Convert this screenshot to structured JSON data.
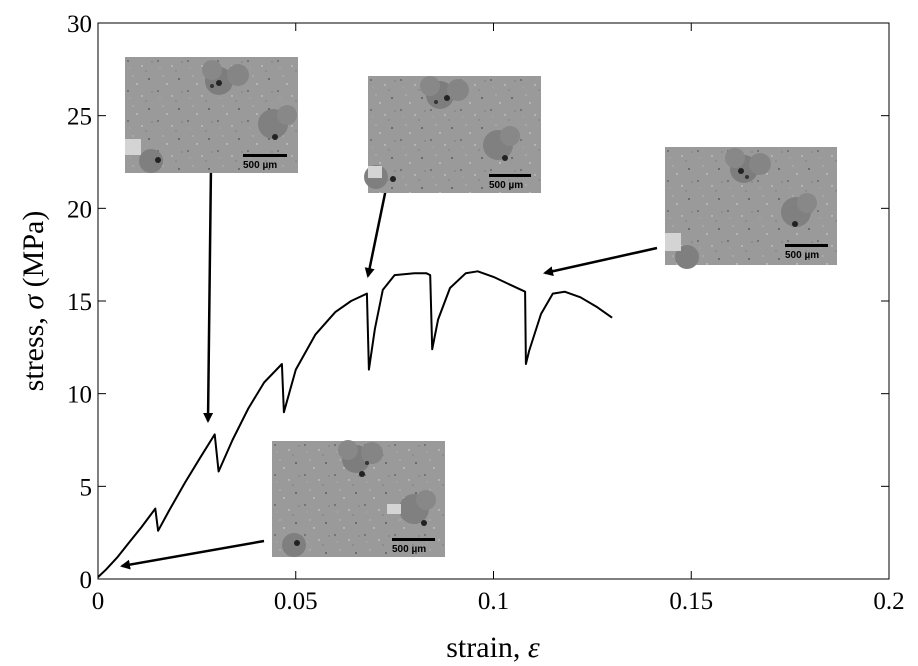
{
  "chart_data": {
    "type": "line",
    "xlabel": "strain, ",
    "xlabel_symbol": "ε",
    "ylabel": "stress, ",
    "ylabel_symbol": "σ",
    "ylabel_unit": " (MPa)",
    "xlim": [
      0,
      0.2
    ],
    "ylim": [
      0,
      30
    ],
    "x_ticks": [
      0,
      0.05,
      0.1,
      0.15,
      0.2
    ],
    "x_tick_labels": [
      "0",
      "0.05",
      "0.1",
      "0.15",
      "0.2"
    ],
    "y_ticks": [
      0,
      5,
      10,
      15,
      20,
      25,
      30
    ],
    "y_tick_labels": [
      "0",
      "5",
      "10",
      "15",
      "20",
      "25",
      "30"
    ],
    "grid": false,
    "line_color": "#000000",
    "series": [
      {
        "x": [
          0,
          0.002,
          0.005,
          0.008,
          0.011,
          0.0145,
          0.0152,
          0.018,
          0.022,
          0.026,
          0.0295,
          0.0305,
          0.034,
          0.038,
          0.042,
          0.0465,
          0.047,
          0.05,
          0.055,
          0.06,
          0.064,
          0.068,
          0.0685,
          0.07,
          0.072,
          0.075,
          0.08,
          0.083,
          0.084,
          0.0845,
          0.086,
          0.089,
          0.093,
          0.096,
          0.1,
          0.105,
          0.108,
          0.1082,
          0.109,
          0.112,
          0.115,
          0.118,
          0.122,
          0.126,
          0.13
        ],
        "y": [
          0.1,
          0.5,
          1.2,
          2.0,
          2.8,
          3.8,
          2.6,
          3.7,
          5.2,
          6.6,
          7.8,
          5.8,
          7.5,
          9.2,
          10.6,
          11.6,
          9.0,
          11.3,
          13.2,
          14.4,
          15.0,
          15.4,
          11.3,
          13.5,
          15.6,
          16.4,
          16.5,
          16.5,
          16.4,
          12.4,
          14.0,
          15.7,
          16.5,
          16.6,
          16.3,
          15.8,
          15.5,
          11.6,
          12.3,
          14.3,
          15.4,
          15.5,
          15.2,
          14.7,
          14.1
        ]
      }
    ],
    "annotations": [
      {
        "target": [
          0.005,
          0.7
        ],
        "inset_scale_label": "500 µm"
      },
      {
        "target": [
          0.028,
          8.3
        ],
        "inset_scale_label": "500 µm"
      },
      {
        "target": [
          0.068,
          16.1
        ],
        "inset_scale_label": "500 µm"
      },
      {
        "target": [
          0.112,
          16.4
        ],
        "inset_scale_label": "500 µm"
      }
    ]
  }
}
